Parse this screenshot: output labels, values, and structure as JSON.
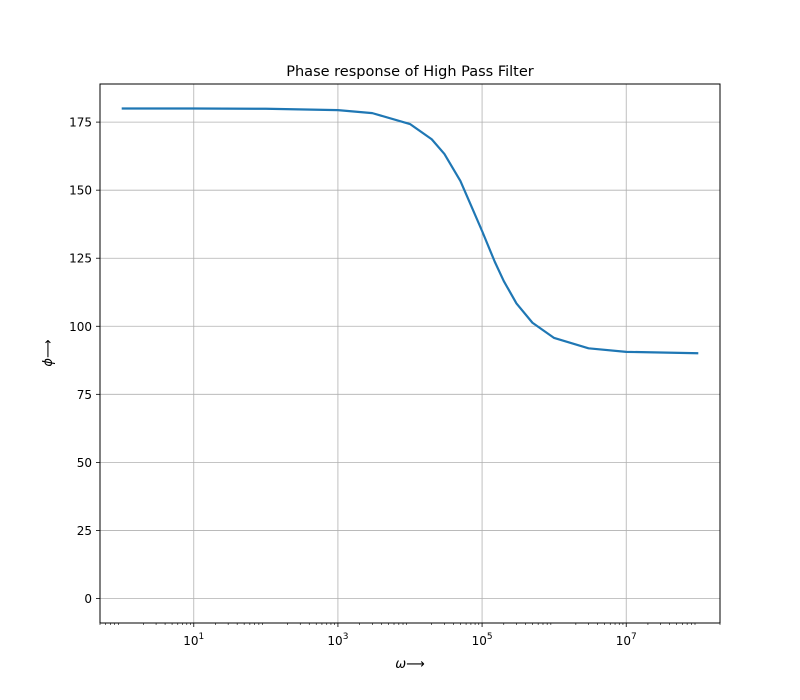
{
  "chart_data": {
    "type": "line",
    "title": "Phase response of High Pass Filter",
    "xlabel": "ω⟶",
    "ylabel": "ϕ⟶",
    "xscale": "log",
    "xlim": [
      0.5,
      200000000
    ],
    "ylim": [
      -9,
      189
    ],
    "grid": true,
    "x_ticks": [
      {
        "value": 10,
        "base": "10",
        "exp": "1"
      },
      {
        "value": 1000,
        "base": "10",
        "exp": "3"
      },
      {
        "value": 100000,
        "base": "10",
        "exp": "5"
      },
      {
        "value": 10000000,
        "base": "10",
        "exp": "7"
      }
    ],
    "y_ticks": [
      0,
      25,
      50,
      75,
      100,
      125,
      150,
      175
    ],
    "series": [
      {
        "color": "#1f77b4",
        "x": [
          1,
          10,
          100,
          1000,
          3000,
          10000,
          20000,
          30000,
          50000,
          70000,
          100000,
          150000,
          200000,
          300000,
          500000,
          1000000,
          3000000,
          10000000,
          100000000
        ],
        "y": [
          180,
          180,
          179.9,
          179.4,
          178.3,
          174.3,
          168.7,
          163.3,
          153.4,
          144.5,
          135,
          123.7,
          116.6,
          108.4,
          101.3,
          95.7,
          91.9,
          90.6,
          90.1
        ]
      }
    ]
  }
}
